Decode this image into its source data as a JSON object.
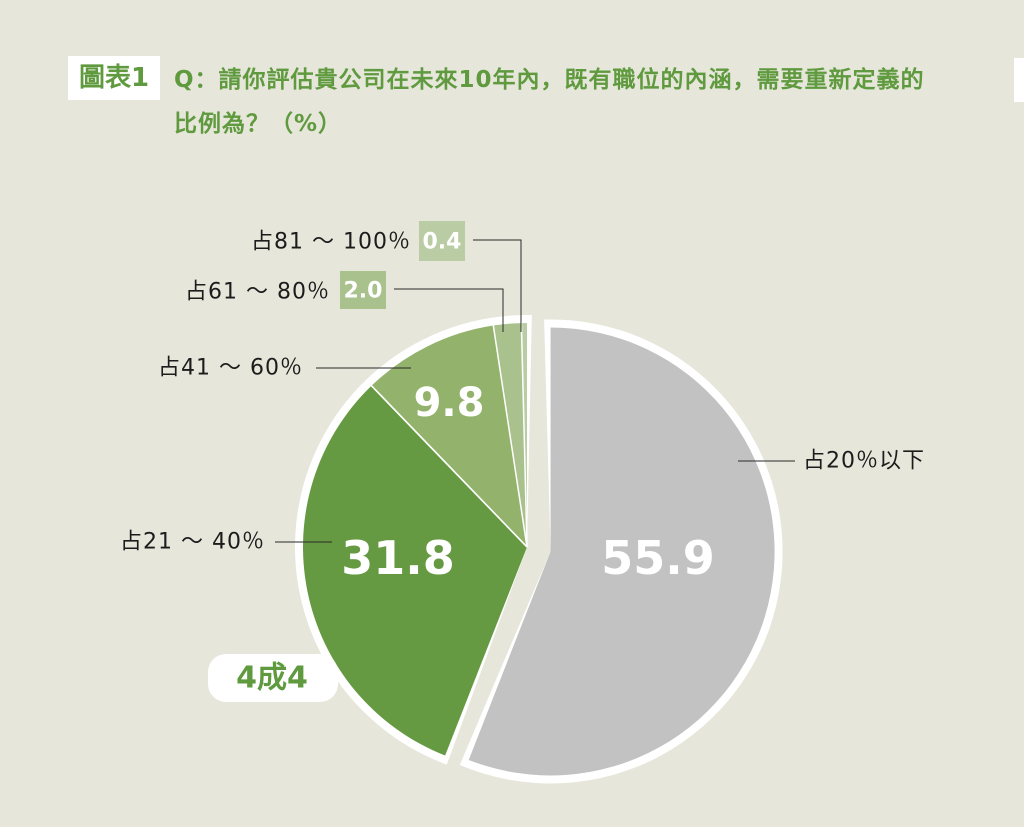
{
  "figure_label": "圖表1",
  "title": "Q：請你評估貴公司在未來10年內，既有職位的內涵，需要重新定義的比例為？（%）",
  "callout": "4成4",
  "colors": {
    "background": "#e6e6da",
    "accent": "#5f9a3e",
    "gray": "#c2c2c2",
    "dark_green": "#669a42",
    "mid_green": "#93b36c",
    "light_green": "#a9c18c",
    "pale_green": "#bacca3"
  },
  "chart_data": {
    "type": "pie",
    "title": "Q：請你評估貴公司在未來10年內，既有職位的內涵，需要重新定義的比例為？（%）",
    "unit": "%",
    "legend": "none",
    "slices": [
      {
        "label": "占20％以下",
        "value": 55.9,
        "display": "55.9",
        "color": "#c2c2c2"
      },
      {
        "label": "占21 ～ 40％",
        "value": 31.8,
        "display": "31.8",
        "color": "#669a42"
      },
      {
        "label": "占41 ～ 60％",
        "value": 9.8,
        "display": "9.8",
        "color": "#93b36c"
      },
      {
        "label": "占61 ～ 80％",
        "value": 2.0,
        "display": "2.0",
        "color": "#a9c18c"
      },
      {
        "label": "占81 ～ 100％",
        "value": 0.4,
        "display": "0.4",
        "color": "#bacca3"
      }
    ]
  }
}
